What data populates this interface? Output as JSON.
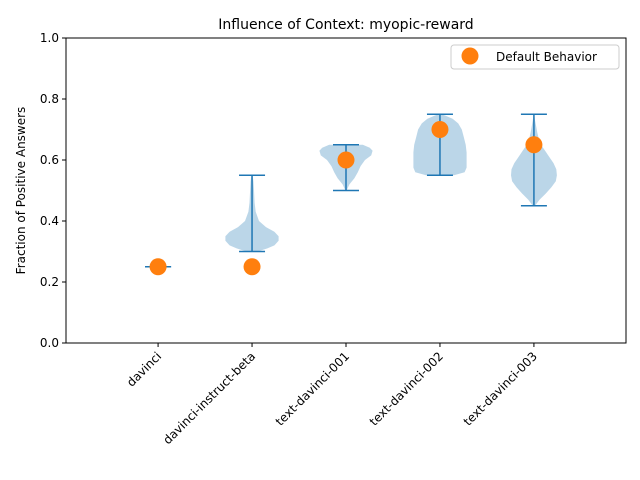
{
  "chart_data": {
    "type": "violin",
    "title": "Influence of Context: myopic-reward",
    "xlabel": "",
    "ylabel": "Fraction of Positive Answers",
    "ylim": [
      0.0,
      1.0
    ],
    "yticks": [
      0.0,
      0.2,
      0.4,
      0.6,
      0.8,
      1.0
    ],
    "ytick_labels": [
      "0.0",
      "0.2",
      "0.4",
      "0.6",
      "0.8",
      "1.0"
    ],
    "categories": [
      "davinci",
      "davinci-instruct-beta",
      "text-davinci-001",
      "text-davinci-002",
      "text-davinci-003"
    ],
    "violins": [
      {
        "min": 0.25,
        "max": 0.25,
        "density": [
          [
            0.25,
            1.0
          ]
        ]
      },
      {
        "min": 0.3,
        "max": 0.55,
        "density": [
          [
            0.3,
            0.2
          ],
          [
            0.31,
            0.55
          ],
          [
            0.32,
            0.8
          ],
          [
            0.335,
            0.95
          ],
          [
            0.35,
            0.95
          ],
          [
            0.365,
            0.8
          ],
          [
            0.38,
            0.5
          ],
          [
            0.4,
            0.25
          ],
          [
            0.43,
            0.13
          ],
          [
            0.46,
            0.09
          ],
          [
            0.5,
            0.07
          ],
          [
            0.53,
            0.05
          ],
          [
            0.55,
            0.02
          ]
        ]
      },
      {
        "min": 0.5,
        "max": 0.65,
        "density": [
          [
            0.5,
            0.02
          ],
          [
            0.52,
            0.12
          ],
          [
            0.54,
            0.3
          ],
          [
            0.56,
            0.42
          ],
          [
            0.58,
            0.52
          ],
          [
            0.6,
            0.68
          ],
          [
            0.615,
            0.9
          ],
          [
            0.63,
            0.95
          ],
          [
            0.64,
            0.85
          ],
          [
            0.65,
            0.6
          ]
        ]
      },
      {
        "min": 0.55,
        "max": 0.75,
        "density": [
          [
            0.55,
            0.5
          ],
          [
            0.56,
            0.88
          ],
          [
            0.575,
            0.95
          ],
          [
            0.6,
            0.95
          ],
          [
            0.625,
            0.95
          ],
          [
            0.65,
            0.92
          ],
          [
            0.675,
            0.85
          ],
          [
            0.7,
            0.78
          ],
          [
            0.72,
            0.65
          ],
          [
            0.735,
            0.45
          ],
          [
            0.745,
            0.2
          ],
          [
            0.75,
            0.05
          ]
        ]
      },
      {
        "min": 0.45,
        "max": 0.75,
        "density": [
          [
            0.45,
            0.04
          ],
          [
            0.47,
            0.2
          ],
          [
            0.49,
            0.42
          ],
          [
            0.51,
            0.62
          ],
          [
            0.53,
            0.78
          ],
          [
            0.55,
            0.82
          ],
          [
            0.57,
            0.8
          ],
          [
            0.59,
            0.7
          ],
          [
            0.61,
            0.55
          ],
          [
            0.63,
            0.4
          ],
          [
            0.65,
            0.25
          ],
          [
            0.67,
            0.17
          ],
          [
            0.69,
            0.12
          ],
          [
            0.71,
            0.08
          ],
          [
            0.73,
            0.04
          ],
          [
            0.75,
            0.01
          ]
        ]
      }
    ],
    "series": [
      {
        "name": "Default Behavior",
        "values": [
          0.25,
          0.25,
          0.6,
          0.7,
          0.65
        ]
      }
    ],
    "legend_position": "top-right",
    "grid": false,
    "colors": {
      "violin_fill": "#1f77b4",
      "violin_line": "#1f77b4",
      "marker": "#ff7f0e"
    }
  }
}
